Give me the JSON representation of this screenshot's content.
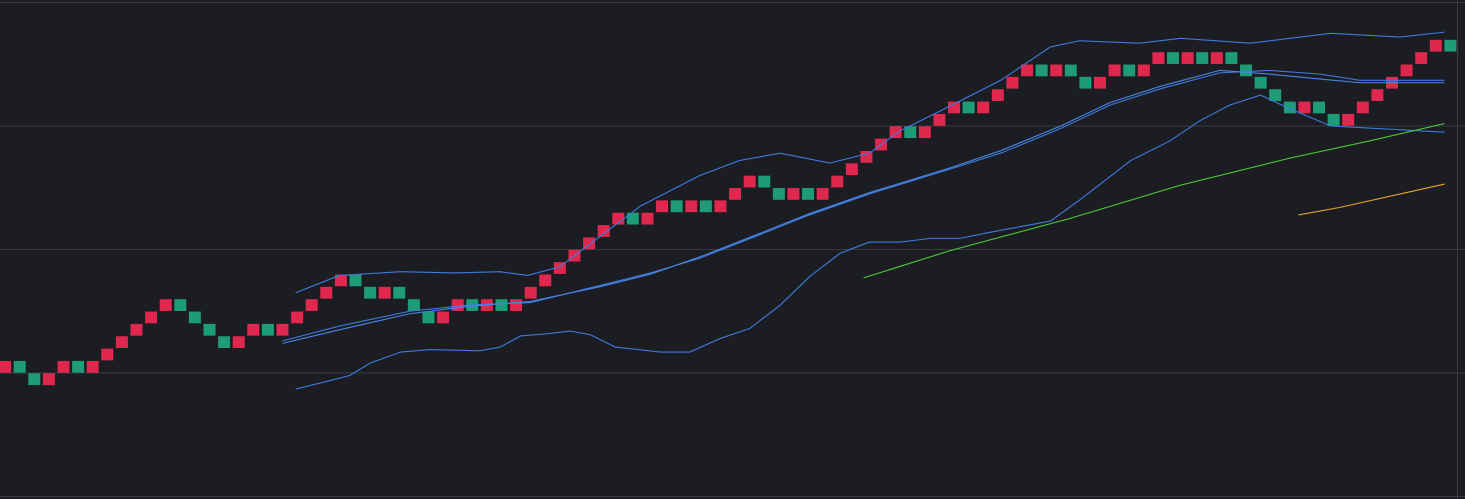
{
  "chart_data": {
    "type": "renko",
    "xlim": [
      -0.35,
      100
    ],
    "ylim": [
      -0.2,
      40.2
    ],
    "gridlines": [
      0,
      10,
      20,
      30,
      40
    ],
    "grid": true,
    "up_color": "#e0284f",
    "down_color": "#1e9c77",
    "open": [
      10,
      11,
      10,
      9,
      10,
      11,
      10,
      11,
      12,
      13,
      14,
      15,
      16,
      15,
      14,
      13,
      12,
      13,
      14,
      13,
      14,
      15,
      16,
      17,
      18,
      17,
      16,
      17,
      16,
      15,
      14,
      15,
      16,
      15,
      16,
      15,
      16,
      17,
      18,
      19,
      20,
      21,
      22,
      23,
      22,
      23,
      24,
      23,
      24,
      23,
      24,
      25,
      26,
      25,
      24,
      25,
      24,
      25,
      26,
      27,
      28,
      29,
      30,
      29,
      30,
      31,
      32,
      31,
      32,
      33,
      34,
      35,
      34,
      35,
      34,
      33,
      34,
      35,
      34,
      35,
      36,
      35,
      36,
      35,
      36,
      35,
      34,
      33,
      32,
      31,
      32,
      31,
      30,
      31,
      32,
      33,
      34,
      35,
      36,
      37
    ],
    "close": [
      11,
      10,
      9,
      10,
      11,
      10,
      11,
      12,
      13,
      14,
      15,
      16,
      15,
      14,
      13,
      12,
      13,
      14,
      13,
      14,
      15,
      16,
      17,
      18,
      17,
      16,
      17,
      16,
      15,
      14,
      15,
      16,
      15,
      16,
      15,
      16,
      17,
      18,
      19,
      20,
      21,
      22,
      23,
      22,
      23,
      24,
      23,
      24,
      23,
      24,
      25,
      26,
      25,
      24,
      25,
      24,
      25,
      26,
      27,
      28,
      29,
      30,
      29,
      30,
      31,
      32,
      31,
      32,
      33,
      34,
      35,
      34,
      35,
      34,
      33,
      34,
      35,
      34,
      35,
      36,
      35,
      36,
      35,
      36,
      35,
      34,
      33,
      32,
      31,
      32,
      31,
      30,
      31,
      32,
      33,
      34,
      35,
      36,
      37,
      36
    ],
    "lines": [
      {
        "color": "#3d7be0",
        "x": [
          19.9,
          22.9,
          27.1,
          30.8,
          33.9,
          35.8,
          38.0,
          40.8,
          43.5,
          47.6,
          50.3,
          53.1,
          56.5,
          59.2,
          61.3,
          64.7,
          68.2,
          71.6,
          73.6,
          77.7,
          80.5,
          85.3,
          88.0,
          90.8,
          95.5,
          98.6
        ],
        "values": [
          16.5,
          17.9,
          18.2,
          18.1,
          18.2,
          17.9,
          18.6,
          21.1,
          23.5,
          26.0,
          27.2,
          27.8,
          27.0,
          27.8,
          29.6,
          31.6,
          33.7,
          36.4,
          36.9,
          36.7,
          37.1,
          36.7,
          37.1,
          37.5,
          37.2,
          37.6
        ]
      },
      {
        "color": "#3d7be0",
        "x": [
          19.0,
          22.9,
          27.7,
          31.8,
          36.0,
          40.8,
          44.2,
          47.6,
          51.7,
          55.1,
          59.2,
          64.7,
          68.2,
          72.3,
          75.7,
          79.1,
          83.2,
          86.6,
          90.1,
          92.8,
          98.6
        ],
        "values": [
          12.6,
          13.8,
          15.0,
          15.5,
          15.7,
          17.1,
          18.1,
          19.3,
          21.2,
          22.8,
          24.5,
          26.5,
          27.8,
          29.8,
          31.7,
          33.0,
          34.3,
          34.5,
          34.2,
          33.7,
          33.7
        ]
      },
      {
        "color": "#4a86e8",
        "x": [
          19.0,
          22.9,
          27.7,
          31.8,
          36.0,
          40.8,
          44.2,
          47.6,
          51.7,
          55.1,
          59.2,
          64.7,
          68.2,
          72.3,
          75.7,
          79.1,
          83.2,
          86.6,
          90.1,
          92.8,
          98.6
        ],
        "values": [
          12.4,
          13.5,
          14.8,
          15.4,
          15.8,
          17.0,
          18.0,
          19.4,
          21.3,
          22.9,
          24.6,
          26.6,
          28.0,
          30.0,
          31.9,
          33.2,
          34.5,
          34.2,
          33.8,
          33.5,
          33.5
        ]
      },
      {
        "color": "#3d7be0",
        "x": [
          19.9,
          22.3,
          23.6,
          25.0,
          27.1,
          29.1,
          32.5,
          33.9,
          35.3,
          37.3,
          38.7,
          40.1,
          41.8,
          44.9,
          46.9,
          49.0,
          51.0,
          53.1,
          55.1,
          57.2,
          59.2,
          61.3,
          63.4,
          65.4,
          67.5,
          71.6,
          73.6,
          77.1,
          79.8,
          81.8,
          83.9,
          86.0,
          88.0,
          90.8,
          95.5,
          98.6
        ],
        "values": [
          8.7,
          9.4,
          9.8,
          10.8,
          11.7,
          11.9,
          11.8,
          12.1,
          13.0,
          13.2,
          13.4,
          13.1,
          12.1,
          11.7,
          11.7,
          12.8,
          13.6,
          15.5,
          17.8,
          19.7,
          20.6,
          20.6,
          20.9,
          20.9,
          21.4,
          22.3,
          24.0,
          27.2,
          28.8,
          30.4,
          31.7,
          32.5,
          31.4,
          30.0,
          29.7,
          29.5
        ]
      },
      {
        "color": "#4cc93a",
        "x": [
          58.8,
          64.7,
          72.9,
          80.5,
          88.0,
          93.5,
          98.6
        ],
        "values": [
          17.7,
          19.9,
          22.5,
          25.2,
          27.4,
          28.8,
          30.2
        ]
      },
      {
        "color": "#e8a624",
        "x": [
          88.6,
          91.4,
          98.6
        ],
        "values": [
          22.8,
          23.4,
          25.3
        ]
      }
    ]
  }
}
